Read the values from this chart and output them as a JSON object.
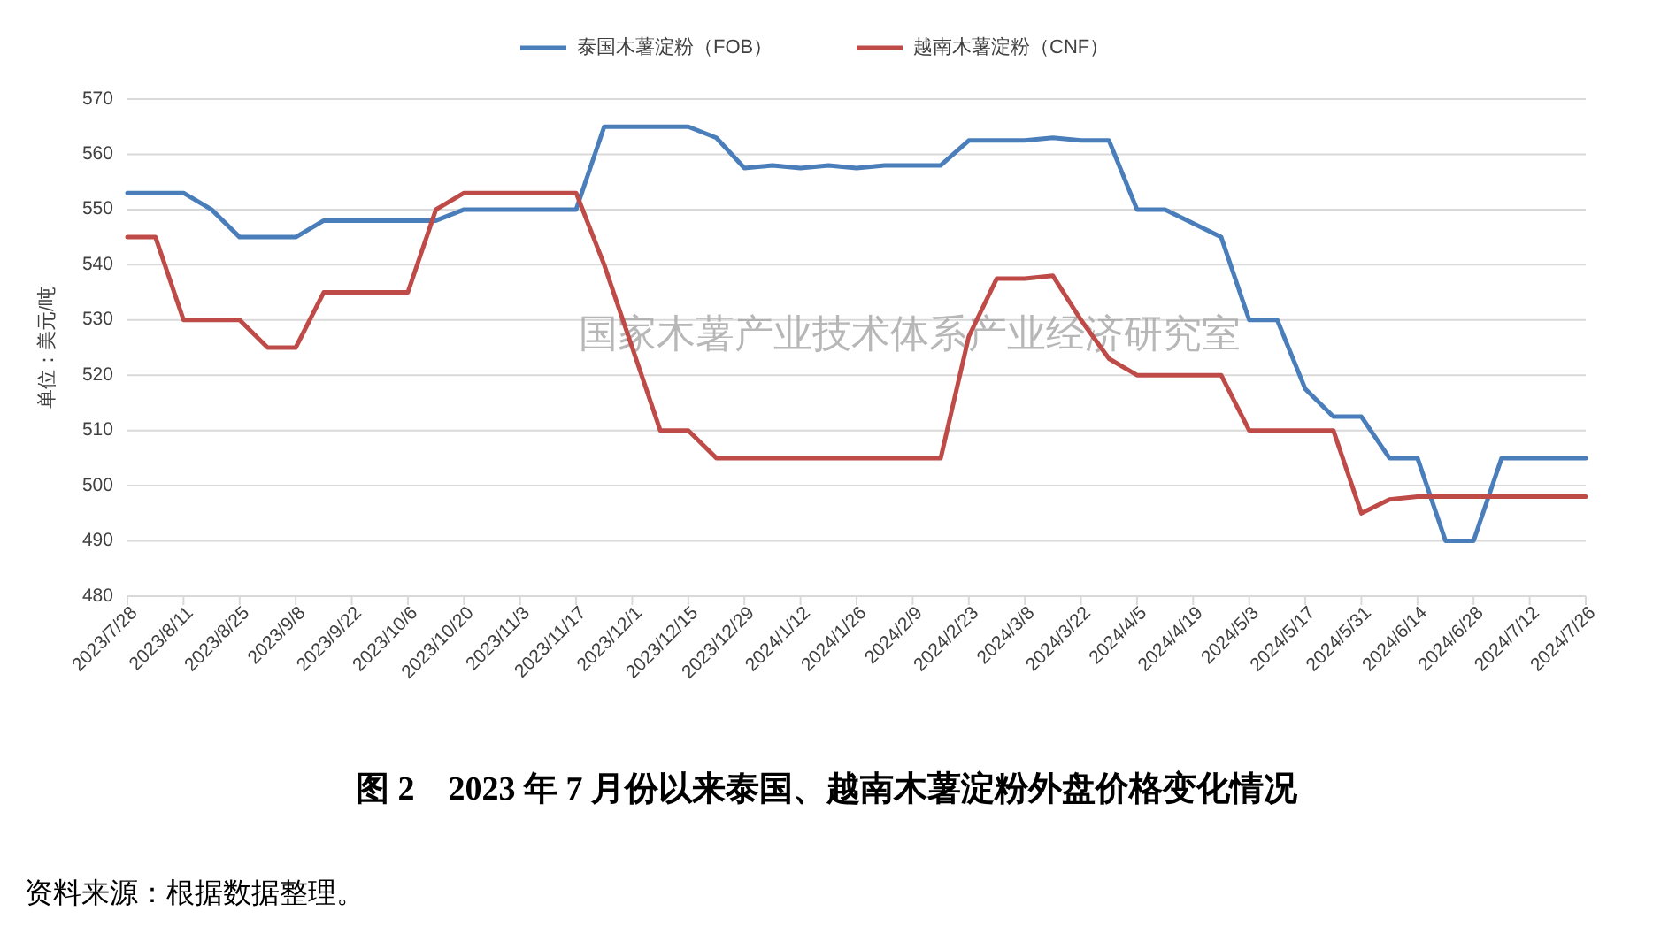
{
  "chart_data": {
    "type": "line",
    "title": "图 2　2023 年 7 月份以来泰国、越南木薯淀粉外盘价格变化情况",
    "ylabel": "单位：美元/吨",
    "x": [
      "2023-07-28",
      "2023-08-04",
      "2023-08-11",
      "2023-08-18",
      "2023-08-25",
      "2023-09-01",
      "2023-09-08",
      "2023-09-15",
      "2023-09-22",
      "2023-09-29",
      "2023-10-06",
      "2023-10-13",
      "2023-10-20",
      "2023-10-27",
      "2023-11-03",
      "2023-11-10",
      "2023-11-17",
      "2023-11-24",
      "2023-12-01",
      "2023-12-08",
      "2023-12-15",
      "2023-12-22",
      "2023-12-29",
      "2024-01-05",
      "2024-01-12",
      "2024-01-19",
      "2024-01-26",
      "2024-02-02",
      "2024-02-09",
      "2024-02-16",
      "2024-02-23",
      "2024-03-01",
      "2024-03-08",
      "2024-03-15",
      "2024-03-22",
      "2024-03-29",
      "2024-04-05",
      "2024-04-12",
      "2024-04-19",
      "2024-04-26",
      "2024-05-03",
      "2024-05-10",
      "2024-05-17",
      "2024-05-24",
      "2024-05-31",
      "2024-06-07",
      "2024-06-14",
      "2024-06-21",
      "2024-06-28",
      "2024-07-05",
      "2024-07-12",
      "2024-07-19",
      "2024-07-26"
    ],
    "series": [
      {
        "name": "泰国木薯淀粉（FOB）",
        "color": "#4a7ebb",
        "values": [
          553,
          553,
          553,
          550,
          545,
          545,
          545,
          548,
          548,
          548,
          548,
          548,
          550,
          550,
          550,
          550,
          550,
          565,
          565,
          565,
          565,
          563,
          557.5,
          558,
          557.5,
          558,
          557.5,
          558,
          558,
          558,
          562.5,
          562.5,
          562.5,
          563,
          562.5,
          562.5,
          550,
          550,
          547.5,
          545,
          530,
          530,
          517.5,
          512.5,
          512.5,
          505,
          505,
          490,
          490,
          505,
          505,
          505,
          505
        ]
      },
      {
        "name": "越南木薯淀粉（CNF）",
        "color": "#be4b48",
        "values": [
          545,
          545,
          530,
          530,
          530,
          525,
          525,
          535,
          535,
          535,
          535,
          550,
          553,
          553,
          553,
          553,
          553,
          540,
          525,
          510,
          510,
          505,
          505,
          505,
          505,
          505,
          505,
          505,
          505,
          505,
          527,
          537.5,
          537.5,
          538,
          530,
          523,
          520,
          520,
          520,
          520,
          510,
          510,
          510,
          510,
          495,
          497.5,
          498,
          498,
          498,
          498,
          498,
          498,
          498
        ]
      }
    ],
    "xlim": [
      "2023-07-28",
      "2024-07-26"
    ],
    "xticks": [
      {
        "value": "2023-07-28",
        "label": "2023/7/28"
      },
      {
        "value": "2023-08-11",
        "label": "2023/8/11"
      },
      {
        "value": "2023-08-25",
        "label": "2023/8/25"
      },
      {
        "value": "2023-09-08",
        "label": "2023/9/8"
      },
      {
        "value": "2023-09-22",
        "label": "2023/9/22"
      },
      {
        "value": "2023-10-06",
        "label": "2023/10/6"
      },
      {
        "value": "2023-10-20",
        "label": "2023/10/20"
      },
      {
        "value": "2023-11-03",
        "label": "2023/11/3"
      },
      {
        "value": "2023-11-17",
        "label": "2023/11/17"
      },
      {
        "value": "2023-12-01",
        "label": "2023/12/1"
      },
      {
        "value": "2023-12-15",
        "label": "2023/12/15"
      },
      {
        "value": "2023-12-29",
        "label": "2023/12/29"
      },
      {
        "value": "2024-01-12",
        "label": "2024/1/12"
      },
      {
        "value": "2024-01-26",
        "label": "2024/1/26"
      },
      {
        "value": "2024-02-09",
        "label": "2024/2/9"
      },
      {
        "value": "2024-02-23",
        "label": "2024/2/23"
      },
      {
        "value": "2024-03-08",
        "label": "2024/3/8"
      },
      {
        "value": "2024-03-22",
        "label": "2024/3/22"
      },
      {
        "value": "2024-04-05",
        "label": "2024/4/5"
      },
      {
        "value": "2024-04-19",
        "label": "2024/4/19"
      },
      {
        "value": "2024-05-03",
        "label": "2024/5/3"
      },
      {
        "value": "2024-05-17",
        "label": "2024/5/17"
      },
      {
        "value": "2024-05-31",
        "label": "2024/5/31"
      },
      {
        "value": "2024-06-14",
        "label": "2024/6/14"
      },
      {
        "value": "2024-06-28",
        "label": "2024/6/28"
      },
      {
        "value": "2024-07-12",
        "label": "2024/7/12"
      },
      {
        "value": "2024-07-26",
        "label": "2024/7/26"
      }
    ],
    "ylim": [
      480,
      570
    ],
    "yticks": [
      480,
      490,
      500,
      510,
      520,
      530,
      540,
      550,
      560,
      570
    ],
    "grid": "y",
    "legend": "top",
    "marker": "none",
    "line_style": "solid",
    "annotations": [
      "国家木薯产业技术体系产业经济研究室",
      "资料来源：根据数据整理。"
    ]
  }
}
